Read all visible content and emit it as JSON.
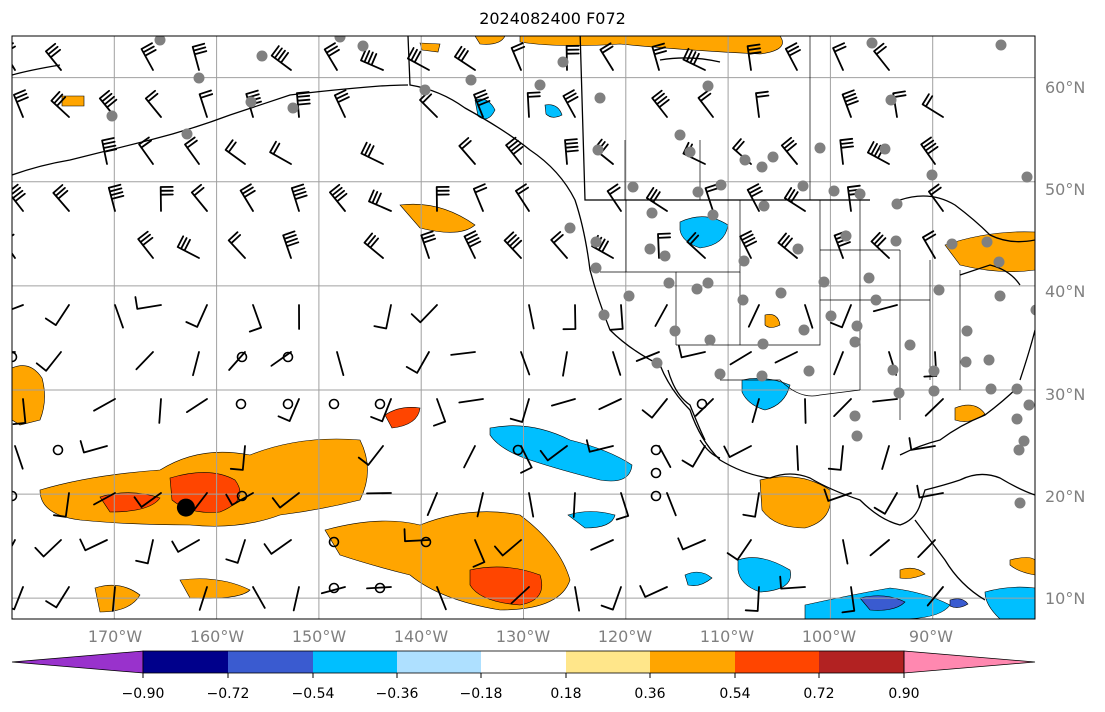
{
  "title": "2024082400 F072",
  "map": {
    "lat_labels": [
      "60°N",
      "50°N",
      "40°N",
      "30°N",
      "20°N",
      "10°N"
    ],
    "lat_values": [
      60,
      50,
      40,
      30,
      20,
      10
    ],
    "lon_labels": [
      "170°W",
      "160°W",
      "150°W",
      "140°W",
      "130°W",
      "120°W",
      "110°W",
      "100°W",
      "90°W"
    ],
    "lon_values": [
      -170,
      -160,
      -150,
      -140,
      -130,
      -120,
      -110,
      -100,
      -90
    ],
    "extent": {
      "lon_min": -180,
      "lon_max": -80,
      "lat_min": 8,
      "lat_max": 64
    },
    "gridlines": true,
    "colors": {
      "land_line": "#000000",
      "grid": "#a0a0a0",
      "station": "#808080"
    },
    "storm_center": {
      "lon": -163,
      "lat": 18.7
    }
  },
  "colorbar": {
    "ticks": [
      "−0.90",
      "−0.72",
      "−0.54",
      "−0.36",
      "−0.18",
      "0.18",
      "0.36",
      "0.54",
      "0.72",
      "0.90"
    ],
    "colors": [
      "#9932cc",
      "#00008b",
      "#3a5bd0",
      "#00bfff",
      "#aee0ff",
      "#ffffff",
      "#ffe68a",
      "#ffa500",
      "#ff4500",
      "#b22222",
      "#ff88b0"
    ]
  }
}
